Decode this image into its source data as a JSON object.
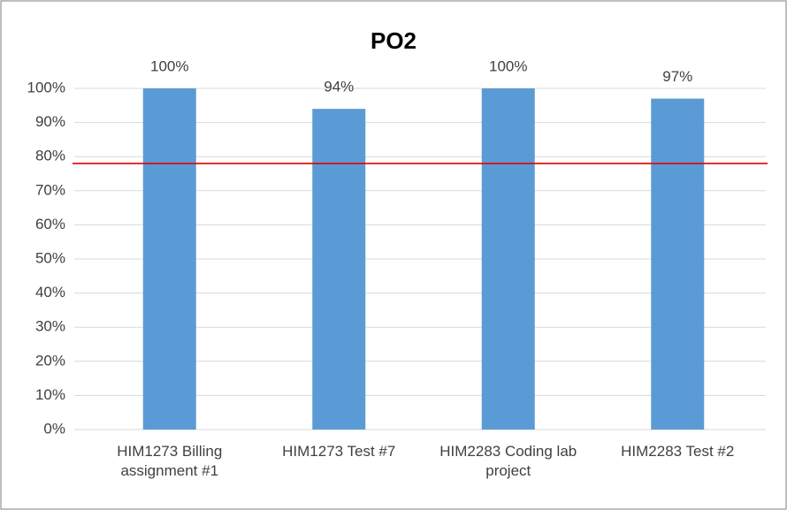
{
  "chart_data": {
    "type": "bar",
    "title": "PO2",
    "categories": [
      "HIM1273 Billing assignment #1",
      "HIM1273 Test #7",
      "HIM2283 Coding lab project",
      "HIM2283 Test #2"
    ],
    "values": [
      100,
      94,
      100,
      97
    ],
    "value_labels": [
      "100%",
      "94%",
      "100%",
      "97%"
    ],
    "color": "#5b9bd5",
    "threshold": 78,
    "threshold_color": "#e00000",
    "ylim": [
      0,
      100
    ],
    "yticks": [
      {
        "value": 0,
        "label": "0%"
      },
      {
        "value": 10,
        "label": "10%"
      },
      {
        "value": 20,
        "label": "20%"
      },
      {
        "value": 30,
        "label": "30%"
      },
      {
        "value": 40,
        "label": "40%"
      },
      {
        "value": 50,
        "label": "50%"
      },
      {
        "value": 60,
        "label": "60%"
      },
      {
        "value": 70,
        "label": "70%"
      },
      {
        "value": 80,
        "label": "80%"
      },
      {
        "value": 90,
        "label": "90%"
      },
      {
        "value": 100,
        "label": "100%"
      }
    ],
    "grid": true
  }
}
